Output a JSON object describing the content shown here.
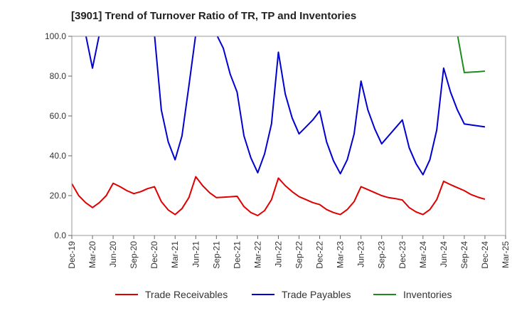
{
  "chart_data": {
    "type": "line",
    "title": "[3901]  Trend of Turnover Ratio of TR, TP and Inventories",
    "xlabel": "",
    "ylabel": "",
    "ylim": [
      0,
      100
    ],
    "yticks": [
      "0.0",
      "20.0",
      "40.0",
      "60.0",
      "80.0",
      "100.0"
    ],
    "x_tick_labels": [
      "Dec-19",
      "Mar-20",
      "Jun-20",
      "Sep-20",
      "Dec-20",
      "Mar-21",
      "Jun-21",
      "Sep-21",
      "Dec-21",
      "Mar-22",
      "Jun-22",
      "Sep-22",
      "Dec-22",
      "Mar-23",
      "Jun-23",
      "Sep-23",
      "Dec-23",
      "Mar-24",
      "Jun-24",
      "Sep-24",
      "Dec-24",
      "Mar-25"
    ],
    "x": [
      "Dec-19",
      "Jan-20",
      "Feb-20",
      "Mar-20",
      "Apr-20",
      "May-20",
      "Jun-20",
      "Jul-20",
      "Aug-20",
      "Sep-20",
      "Oct-20",
      "Nov-20",
      "Dec-20",
      "Jan-21",
      "Feb-21",
      "Mar-21",
      "Apr-21",
      "May-21",
      "Jun-21",
      "Jul-21",
      "Aug-21",
      "Sep-21",
      "Oct-21",
      "Nov-21",
      "Dec-21",
      "Jan-22",
      "Feb-22",
      "Mar-22",
      "Apr-22",
      "May-22",
      "Jun-22",
      "Jul-22",
      "Aug-22",
      "Sep-22",
      "Oct-22",
      "Nov-22",
      "Dec-22",
      "Jan-23",
      "Feb-23",
      "Mar-23",
      "Apr-23",
      "May-23",
      "Jun-23",
      "Jul-23",
      "Aug-23",
      "Sep-23",
      "Oct-23",
      "Nov-23",
      "Dec-23",
      "Jan-24",
      "Feb-24",
      "Mar-24",
      "Apr-24",
      "May-24",
      "Jun-24",
      "Jul-24",
      "Aug-24",
      "Sep-24",
      "Oct-24",
      "Nov-24",
      "Dec-24"
    ],
    "grid": false,
    "legend_position": "bottom",
    "series": [
      {
        "name": "Trade Receivables",
        "color": "#e00000",
        "values": [
          26.0,
          20.0,
          16.5,
          14.0,
          16.5,
          20.0,
          26.2,
          24.5,
          22.5,
          21.0,
          22.0,
          23.5,
          24.5,
          17.0,
          12.8,
          10.5,
          13.5,
          19.0,
          29.5,
          25.0,
          21.5,
          19.0,
          19.2,
          19.4,
          19.7,
          14.5,
          11.5,
          10.0,
          12.5,
          18.0,
          28.8,
          25.0,
          22.0,
          19.5,
          18.0,
          16.5,
          15.5,
          13.0,
          11.5,
          10.5,
          13.0,
          17.0,
          24.5,
          23.0,
          21.5,
          20.0,
          19.0,
          18.5,
          17.8,
          14.0,
          11.8,
          10.5,
          13.0,
          18.0,
          27.2,
          25.5,
          24.0,
          22.5,
          20.5,
          19.2,
          18.2
        ]
      },
      {
        "name": "Trade Payables",
        "color": "#0000d0",
        "values": [
          null,
          null,
          101.0,
          84.0,
          101.0,
          null,
          null,
          null,
          null,
          null,
          null,
          null,
          101.0,
          63.0,
          47.0,
          38.0,
          50.0,
          75.0,
          101.0,
          null,
          null,
          101.0,
          94.0,
          81.0,
          72.0,
          50.0,
          39.0,
          31.5,
          41.0,
          56.0,
          92.0,
          71.0,
          59.0,
          51.0,
          54.5,
          58.0,
          62.5,
          47.0,
          37.5,
          31.0,
          38.0,
          51.0,
          77.5,
          63.0,
          53.5,
          46.0,
          50.0,
          54.0,
          58.0,
          44.0,
          36.0,
          30.5,
          38.0,
          53.0,
          84.0,
          72.0,
          63.0,
          56.0,
          55.5,
          55.0,
          54.5
        ]
      },
      {
        "name": "Inventories",
        "color": "#1f8a1f",
        "values": [
          null,
          null,
          null,
          null,
          null,
          null,
          null,
          null,
          null,
          null,
          null,
          null,
          null,
          null,
          null,
          null,
          null,
          null,
          null,
          null,
          null,
          null,
          null,
          null,
          null,
          null,
          null,
          null,
          null,
          null,
          null,
          null,
          null,
          null,
          null,
          null,
          null,
          null,
          null,
          null,
          null,
          null,
          null,
          null,
          null,
          null,
          null,
          null,
          null,
          null,
          null,
          null,
          null,
          null,
          null,
          null,
          101.0,
          81.8,
          82.0,
          82.2,
          82.5
        ]
      }
    ]
  }
}
